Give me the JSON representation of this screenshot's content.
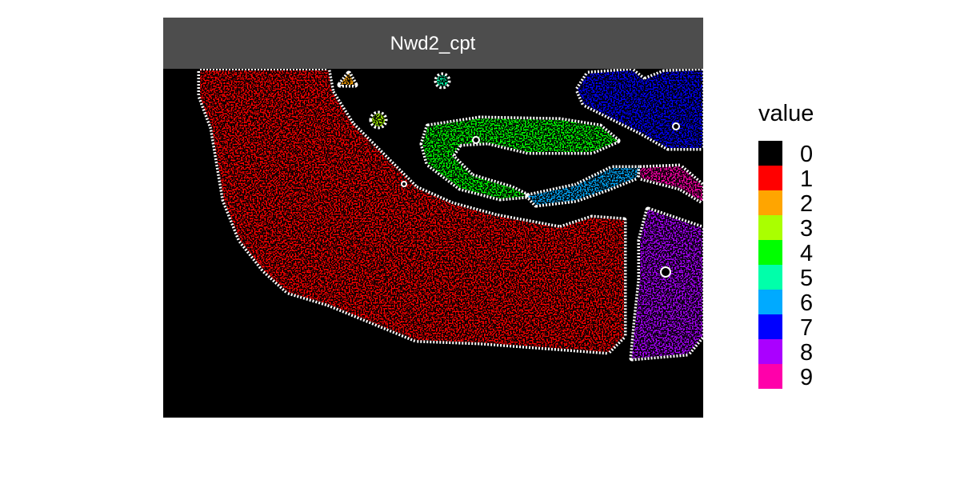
{
  "chart_data": {
    "type": "heatmap",
    "facet_title": "Nwd2_cpt",
    "legend": {
      "title": "value",
      "entries": [
        {
          "label": "0",
          "color": "#000000"
        },
        {
          "label": "1",
          "color": "#FF0000"
        },
        {
          "label": "2",
          "color": "#FFA500"
        },
        {
          "label": "3",
          "color": "#AAFF00"
        },
        {
          "label": "4",
          "color": "#00FF00"
        },
        {
          "label": "5",
          "color": "#00FFAA"
        },
        {
          "label": "6",
          "color": "#00AAFF"
        },
        {
          "label": "7",
          "color": "#0000FF"
        },
        {
          "label": "8",
          "color": "#AA00FF"
        },
        {
          "label": "9",
          "color": "#FF00AA"
        }
      ]
    },
    "panel_background": "#000000",
    "strip_color": "#4D4D4D",
    "boundary_color": "#FFFFFF",
    "grid": false,
    "axes_visible": false,
    "legend_position": "right"
  }
}
